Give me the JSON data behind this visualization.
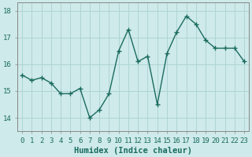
{
  "x": [
    0,
    1,
    2,
    3,
    4,
    5,
    6,
    7,
    8,
    9,
    10,
    11,
    12,
    13,
    14,
    15,
    16,
    17,
    18,
    19,
    20,
    21,
    22,
    23
  ],
  "y": [
    15.6,
    15.4,
    15.5,
    15.3,
    14.9,
    14.9,
    15.1,
    14.0,
    14.3,
    14.9,
    16.5,
    17.3,
    16.1,
    16.3,
    14.5,
    16.4,
    17.2,
    17.8,
    17.5,
    16.9,
    16.6,
    16.6,
    16.6,
    16.1
  ],
  "line_color": "#1a6b5e",
  "marker": "+",
  "markersize": 5,
  "background_color": "#ceeaea",
  "grid_color": "#b0d4d4",
  "xlabel": "Humidex (Indice chaleur)",
  "ylim": [
    13.5,
    18.3
  ],
  "xlim": [
    -0.5,
    23.5
  ],
  "yticks": [
    14,
    15,
    16,
    17,
    18
  ],
  "xticks": [
    0,
    1,
    2,
    3,
    4,
    5,
    6,
    7,
    8,
    9,
    10,
    11,
    12,
    13,
    14,
    15,
    16,
    17,
    18,
    19,
    20,
    21,
    22,
    23
  ],
  "xlabel_fontsize": 7.5,
  "tick_fontsize": 6.5,
  "linewidth": 1.0,
  "spine_color": "#888888"
}
